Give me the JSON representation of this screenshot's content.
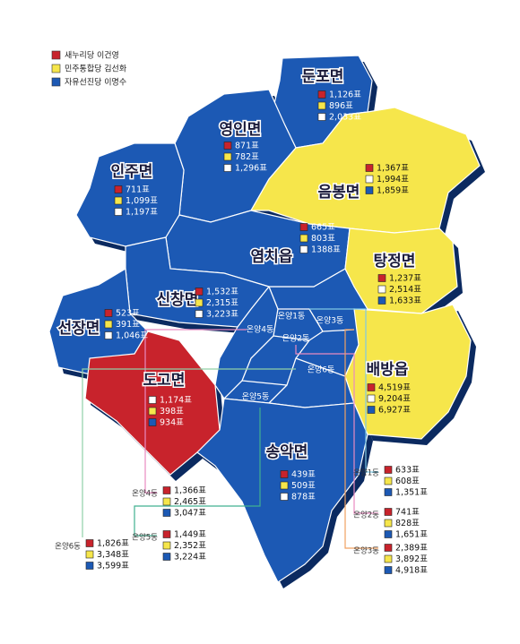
{
  "legend": [
    {
      "label": "새누리당 이건영",
      "color": "#c8232c"
    },
    {
      "label": "민주통합당 김선화",
      "color": "#f6e64b"
    },
    {
      "label": "자유선진당 이명수",
      "color": "#1c59b4"
    }
  ],
  "regions": [
    {
      "name": "둔포면",
      "color": "#1c59b4",
      "votes": [
        {
          "text": "1,126표",
          "box": "#c8232c"
        },
        {
          "text": "896표",
          "box": "#f6e64b"
        },
        {
          "text": "2,033표",
          "box": "#ffffff"
        }
      ]
    },
    {
      "name": "영인면",
      "color": "#1c59b4",
      "votes": [
        {
          "text": "871표",
          "box": "#c8232c"
        },
        {
          "text": "782표",
          "box": "#f6e64b"
        },
        {
          "text": "1,296표",
          "box": "#ffffff"
        }
      ]
    },
    {
      "name": "인주면",
      "color": "#1c59b4",
      "votes": [
        {
          "text": "711표",
          "box": "#c8232c"
        },
        {
          "text": "1,099표",
          "box": "#f6e64b"
        },
        {
          "text": "1,197표",
          "box": "#ffffff"
        }
      ]
    },
    {
      "name": "음봉면",
      "color": "#f6e64b",
      "votes": [
        {
          "text": "1,367표",
          "box": "#c8232c"
        },
        {
          "text": "1,994표",
          "box": "#ffffff"
        },
        {
          "text": "1,859표",
          "box": "#1c59b4"
        }
      ]
    },
    {
      "name": "염치읍",
      "color": "#1c59b4",
      "votes": [
        {
          "text": "665표",
          "box": "#c8232c"
        },
        {
          "text": "803표",
          "box": "#f6e64b"
        },
        {
          "text": "1388표",
          "box": "#ffffff"
        }
      ]
    },
    {
      "name": "탕정면",
      "color": "#f6e64b",
      "votes": [
        {
          "text": "1,237표",
          "box": "#c8232c"
        },
        {
          "text": "2,514표",
          "box": "#ffffff"
        },
        {
          "text": "1,633표",
          "box": "#1c59b4"
        }
      ]
    },
    {
      "name": "신창면",
      "color": "#1c59b4",
      "votes": [
        {
          "text": "1,532표",
          "box": "#c8232c"
        },
        {
          "text": "2,315표",
          "box": "#f6e64b"
        },
        {
          "text": "3,223표",
          "box": "#ffffff"
        }
      ]
    },
    {
      "name": "선장면",
      "color": "#1c59b4",
      "votes": [
        {
          "text": "523표",
          "box": "#c8232c"
        },
        {
          "text": "391표",
          "box": "#f6e64b"
        },
        {
          "text": "1,046표",
          "box": "#ffffff"
        }
      ]
    },
    {
      "name": "배방읍",
      "color": "#f6e64b",
      "votes": [
        {
          "text": "4,519표",
          "box": "#c8232c"
        },
        {
          "text": "9,204표",
          "box": "#ffffff"
        },
        {
          "text": "6,927표",
          "box": "#1c59b4"
        }
      ]
    },
    {
      "name": "도고면",
      "color": "#c8232c",
      "votes": [
        {
          "text": "1,174표",
          "box": "#ffffff"
        },
        {
          "text": "398표",
          "box": "#f6e64b"
        },
        {
          "text": "934표",
          "box": "#1c59b4"
        }
      ]
    },
    {
      "name": "송악면",
      "color": "#1c59b4",
      "votes": [
        {
          "text": "439표",
          "box": "#c8232c"
        },
        {
          "text": "509표",
          "box": "#f6e64b"
        },
        {
          "text": "878표",
          "box": "#ffffff"
        }
      ]
    }
  ],
  "dongs": [
    {
      "name": "온양1동",
      "votes": [
        {
          "text": "633표",
          "box": "#c8232c"
        },
        {
          "text": "608표",
          "box": "#f6e64b"
        },
        {
          "text": "1,351표",
          "box": "#1c59b4"
        }
      ]
    },
    {
      "name": "온양2동",
      "votes": [
        {
          "text": "741표",
          "box": "#c8232c"
        },
        {
          "text": "828표",
          "box": "#f6e64b"
        },
        {
          "text": "1,651표",
          "box": "#1c59b4"
        }
      ]
    },
    {
      "name": "온양3동",
      "votes": [
        {
          "text": "2,389표",
          "box": "#c8232c"
        },
        {
          "text": "3,892표",
          "box": "#f6e64b"
        },
        {
          "text": "4,918표",
          "box": "#1c59b4"
        }
      ]
    },
    {
      "name": "온양4동",
      "votes": [
        {
          "text": "1,366표",
          "box": "#c8232c"
        },
        {
          "text": "2,465표",
          "box": "#f6e64b"
        },
        {
          "text": "3,047표",
          "box": "#1c59b4"
        }
      ]
    },
    {
      "name": "온양5동",
      "votes": [
        {
          "text": "1,449표",
          "box": "#c8232c"
        },
        {
          "text": "2,352표",
          "box": "#f6e64b"
        },
        {
          "text": "3,224표",
          "box": "#1c59b4"
        }
      ]
    },
    {
      "name": "온양6동",
      "votes": [
        {
          "text": "1,826표",
          "box": "#c8232c"
        },
        {
          "text": "3,348표",
          "box": "#f6e64b"
        },
        {
          "text": "3,599표",
          "box": "#1c59b4"
        }
      ]
    }
  ]
}
